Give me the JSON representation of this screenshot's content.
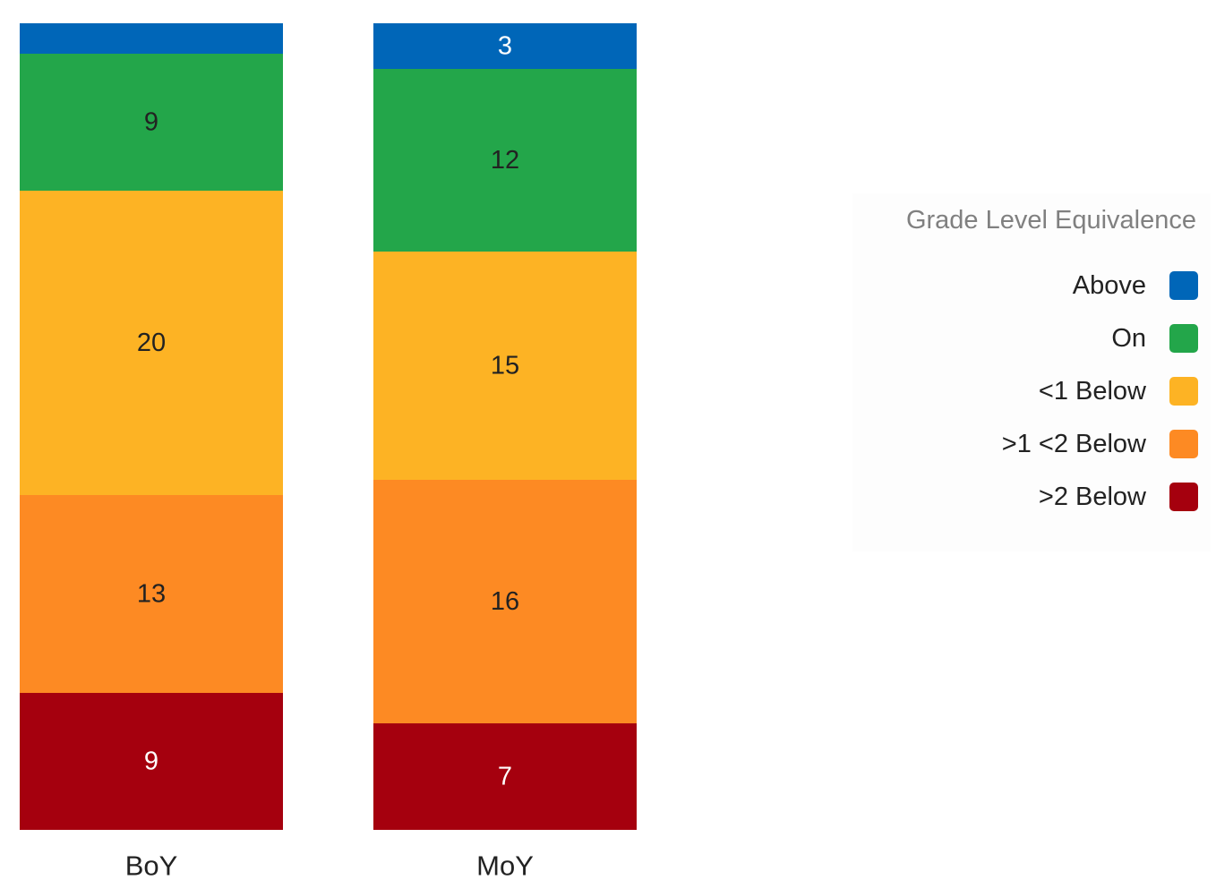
{
  "chart_data": {
    "type": "bar",
    "stacked": true,
    "categories": [
      "BoY",
      "MoY"
    ],
    "series": [
      {
        "name": "Above",
        "values": [
          null,
          3
        ],
        "color": "#0066b8"
      },
      {
        "name": "On",
        "values": [
          9,
          12
        ],
        "color": "#23a64a"
      },
      {
        "name": "<1 Below",
        "values": [
          20,
          15
        ],
        "color": "#fdb324"
      },
      {
        "name": ">1 <2 Below",
        "values": [
          13,
          16
        ],
        "color": "#fd8a23"
      },
      {
        "name": ">2 Below",
        "values": [
          9,
          7
        ],
        "color": "#a5000e"
      }
    ],
    "title": "",
    "xlabel": "",
    "ylabel": "",
    "grid": false,
    "legend": {
      "title": "Grade Level Equivalence",
      "position": "right"
    }
  },
  "label_colors": {
    "dark": "#222222",
    "light": "#ffffff"
  }
}
